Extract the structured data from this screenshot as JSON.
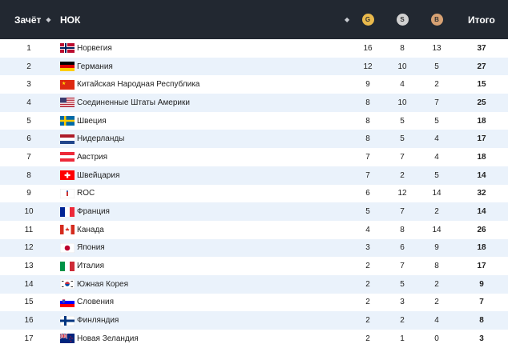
{
  "header": {
    "rank_label": "Зачёт",
    "noc_label": "НОК",
    "gold_label": "G",
    "silver_label": "S",
    "bronze_label": "B",
    "total_label": "Итого",
    "sort_glyph": "◆"
  },
  "rows": [
    {
      "rank": "1",
      "name": "Норвегия",
      "flag": "norway",
      "gold": "16",
      "silver": "8",
      "bronze": "13",
      "total": "37"
    },
    {
      "rank": "2",
      "name": "Германия",
      "flag": "germany",
      "gold": "12",
      "silver": "10",
      "bronze": "5",
      "total": "27"
    },
    {
      "rank": "3",
      "name": "Китайская Народная Республика",
      "flag": "china",
      "gold": "9",
      "silver": "4",
      "bronze": "2",
      "total": "15"
    },
    {
      "rank": "4",
      "name": "Соединенные Штаты Америки",
      "flag": "usa",
      "gold": "8",
      "silver": "10",
      "bronze": "7",
      "total": "25"
    },
    {
      "rank": "5",
      "name": "Швеция",
      "flag": "sweden",
      "gold": "8",
      "silver": "5",
      "bronze": "5",
      "total": "18"
    },
    {
      "rank": "6",
      "name": "Нидерланды",
      "flag": "netherlands",
      "gold": "8",
      "silver": "5",
      "bronze": "4",
      "total": "17"
    },
    {
      "rank": "7",
      "name": "Австрия",
      "flag": "austria",
      "gold": "7",
      "silver": "7",
      "bronze": "4",
      "total": "18"
    },
    {
      "rank": "8",
      "name": "Швейцария",
      "flag": "switzerland",
      "gold": "7",
      "silver": "2",
      "bronze": "5",
      "total": "14"
    },
    {
      "rank": "9",
      "name": "ROC",
      "flag": "roc",
      "gold": "6",
      "silver": "12",
      "bronze": "14",
      "total": "32"
    },
    {
      "rank": "10",
      "name": "Франция",
      "flag": "france",
      "gold": "5",
      "silver": "7",
      "bronze": "2",
      "total": "14"
    },
    {
      "rank": "11",
      "name": "Канада",
      "flag": "canada",
      "gold": "4",
      "silver": "8",
      "bronze": "14",
      "total": "26"
    },
    {
      "rank": "12",
      "name": "Япония",
      "flag": "japan",
      "gold": "3",
      "silver": "6",
      "bronze": "9",
      "total": "18"
    },
    {
      "rank": "13",
      "name": "Италия",
      "flag": "italy",
      "gold": "2",
      "silver": "7",
      "bronze": "8",
      "total": "17"
    },
    {
      "rank": "14",
      "name": "Южная Корея",
      "flag": "south-korea",
      "gold": "2",
      "silver": "5",
      "bronze": "2",
      "total": "9"
    },
    {
      "rank": "15",
      "name": "Словения",
      "flag": "slovenia",
      "gold": "2",
      "silver": "3",
      "bronze": "2",
      "total": "7"
    },
    {
      "rank": "16",
      "name": "Финляндия",
      "flag": "finland",
      "gold": "2",
      "silver": "2",
      "bronze": "4",
      "total": "8"
    },
    {
      "rank": "17",
      "name": "Новая Зеландия",
      "flag": "new-zealand",
      "gold": "2",
      "silver": "1",
      "bronze": "0",
      "total": "3"
    }
  ],
  "colors": {
    "header_bg": "#222831",
    "row_alt_bg": "#eaf2fb",
    "gold": "#e9b94c",
    "silver": "#d1d1d1",
    "bronze": "#d7a173"
  }
}
